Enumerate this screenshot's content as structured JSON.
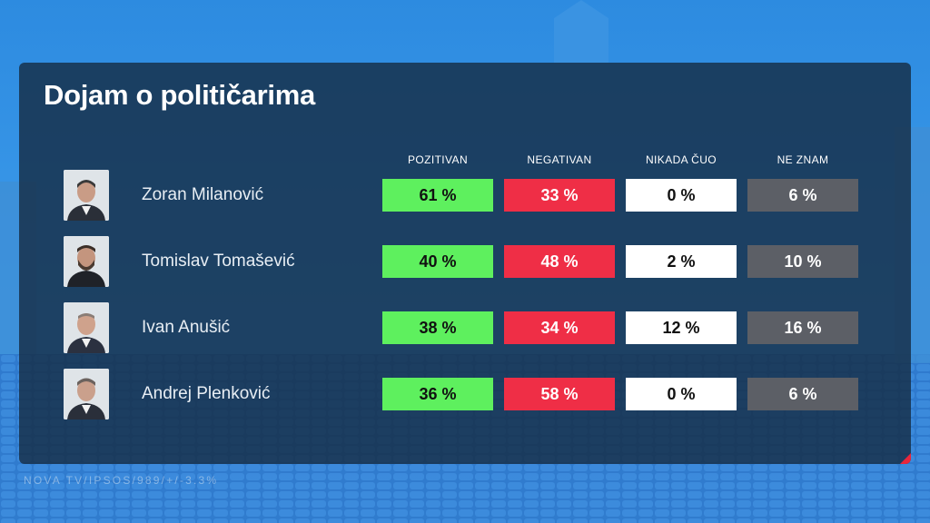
{
  "title": "Dojam o političarima",
  "source": "NOVA TV/IPSOS/989/+/-3.3%",
  "colors": {
    "pozitivan": "#5ef05e",
    "negativan": "#ef2e46",
    "nikada_cuo": "#ffffff",
    "ne_znam": "#5c5f66",
    "accent": "#e8263c"
  },
  "chart_data": {
    "type": "table",
    "title": "Dojam o političarima",
    "columns": [
      "POZITIVAN",
      "NEGATIVAN",
      "NIKADA ČUO",
      "NE ZNAM"
    ],
    "rows": [
      {
        "name": "Zoran Milanović",
        "pozitivan": "61 %",
        "negativan": "33 %",
        "nikada_cuo": "0 %",
        "ne_znam": "6 %",
        "values": [
          61,
          33,
          0,
          6
        ]
      },
      {
        "name": "Tomislav Tomašević",
        "pozitivan": "40 %",
        "negativan": "48 %",
        "nikada_cuo": "2 %",
        "ne_znam": "10 %",
        "values": [
          40,
          48,
          2,
          10
        ]
      },
      {
        "name": "Ivan Anušić",
        "pozitivan": "38 %",
        "negativan": "34 %",
        "nikada_cuo": "12 %",
        "ne_znam": "16 %",
        "values": [
          38,
          34,
          12,
          16
        ]
      },
      {
        "name": "Andrej Plenković",
        "pozitivan": "36 %",
        "negativan": "58 %",
        "nikada_cuo": "0 %",
        "ne_znam": "6 %",
        "values": [
          36,
          58,
          0,
          6
        ]
      }
    ]
  }
}
